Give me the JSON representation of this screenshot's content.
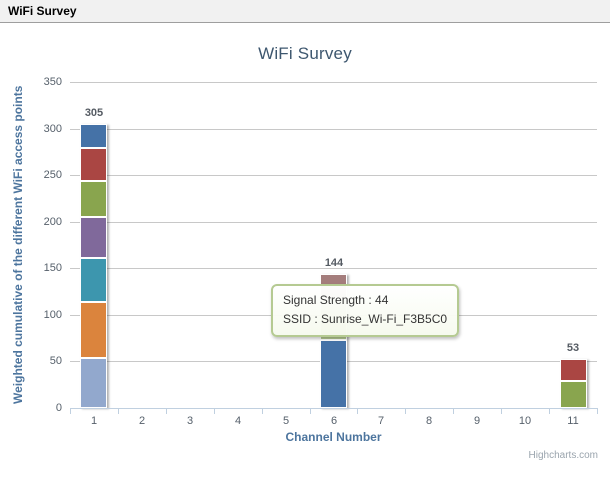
{
  "window": {
    "title": "WiFi Survey"
  },
  "tooltip": {
    "lines": [
      "Signal Strength : 44",
      "SSID : Sunrise_Wi-Fi_F3B5C0"
    ],
    "border_color": "#B5CA92"
  },
  "credits": {
    "label": "Highcharts.com"
  },
  "chart_data": {
    "type": "bar",
    "stacked": true,
    "title": "WiFi Survey",
    "xlabel": "Channel Number",
    "ylabel": "Weighted cumulative of the different WiFi access points",
    "categories": [
      "1",
      "2",
      "3",
      "4",
      "5",
      "6",
      "7",
      "8",
      "9",
      "10",
      "11"
    ],
    "ylim": [
      0,
      350
    ],
    "yticks": [
      0,
      50,
      100,
      150,
      200,
      250,
      300,
      350
    ],
    "grid": "horizontal",
    "legend": "none",
    "stack_labels": [
      305,
      144,
      53
    ],
    "stacks": [
      {
        "category": "1",
        "total": 305,
        "segments_bottom_to_top": [
          {
            "value": 54,
            "color": "#92A8CD"
          },
          {
            "value": 60,
            "color": "#DB843D"
          },
          {
            "value": 47,
            "color": "#3D96AE"
          },
          {
            "value": 44,
            "color": "#80699B"
          },
          {
            "value": 39,
            "color": "#89A54E"
          },
          {
            "value": 35,
            "color": "#AA4643"
          },
          {
            "value": 26,
            "color": "#4572A7"
          }
        ]
      },
      {
        "category": "6",
        "total": 144,
        "segments_bottom_to_top": [
          {
            "value": 73,
            "color": "#4572A7"
          },
          {
            "value": 44,
            "color": "#B5CA92",
            "hovered": true,
            "ssid": "Sunrise_Wi-Fi_F3B5C0"
          },
          {
            "value": 27,
            "color": "#A47D7C"
          }
        ]
      },
      {
        "category": "11",
        "total": 53,
        "segments_bottom_to_top": [
          {
            "value": 29,
            "color": "#89A54E"
          },
          {
            "value": 24,
            "color": "#AA4643"
          }
        ]
      }
    ]
  }
}
